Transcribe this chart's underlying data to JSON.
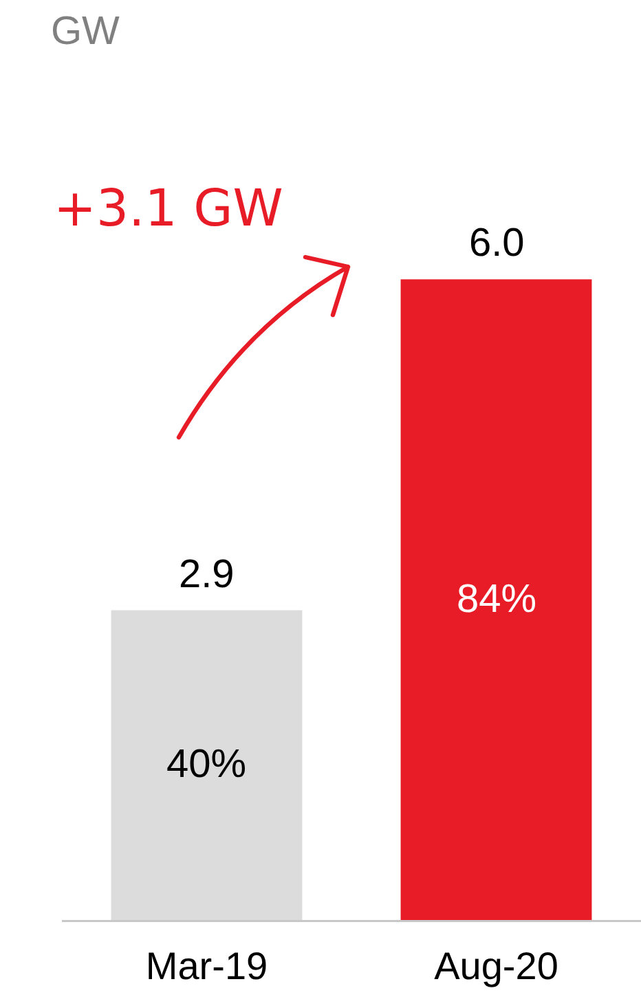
{
  "chart_data": {
    "type": "bar",
    "categories": [
      "Mar-19",
      "Aug-20"
    ],
    "values": [
      2.9,
      6.0
    ],
    "colors": [
      "#dcdcdc",
      "#e81c27"
    ],
    "value_labels": [
      "2.9",
      "6.0"
    ],
    "annotations": [
      "GW",
      "+3.1 GW",
      "40%",
      "84%"
    ]
  }
}
